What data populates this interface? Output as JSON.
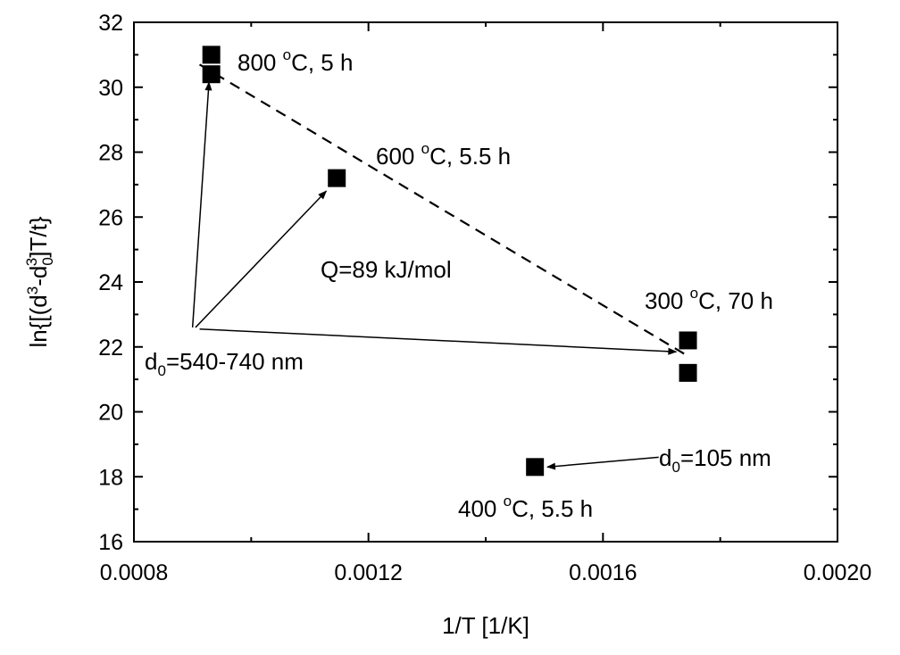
{
  "chart_data": {
    "type": "scatter",
    "xlabel": "1/T [1/K]",
    "ylabel": {
      "prefix": "ln{[(d",
      "sup1": "3",
      "mid1": "-d",
      "sub1": "0",
      "sup2": "3",
      "suffix": "]T/t}"
    },
    "xlim": [
      0.0008,
      0.002
    ],
    "ylim": [
      16,
      32
    ],
    "xticks": [
      {
        "value": 0.0008,
        "label": "0.0008"
      },
      {
        "value": 0.0012,
        "label": "0.0012"
      },
      {
        "value": 0.0016,
        "label": "0.0016"
      },
      {
        "value": 0.002,
        "label": "0.0020"
      }
    ],
    "yticks": [
      {
        "value": 16,
        "label": "16"
      },
      {
        "value": 18,
        "label": "18"
      },
      {
        "value": 20,
        "label": "20"
      },
      {
        "value": 22,
        "label": "22"
      },
      {
        "value": 24,
        "label": "24"
      },
      {
        "value": 26,
        "label": "26"
      },
      {
        "value": 28,
        "label": "28"
      },
      {
        "value": 30,
        "label": "30"
      },
      {
        "value": 32,
        "label": "32"
      }
    ],
    "points": [
      {
        "x": 0.000932,
        "y": 31.0
      },
      {
        "x": 0.000932,
        "y": 30.4
      },
      {
        "x": 0.001146,
        "y": 27.2
      },
      {
        "x": 0.001745,
        "y": 22.2
      },
      {
        "x": 0.001745,
        "y": 21.2
      },
      {
        "x": 0.001484,
        "y": 18.3
      }
    ],
    "fit_line": {
      "x": [
        0.000912,
        0.001742
      ],
      "y": [
        30.7,
        21.75
      ]
    },
    "annotations": {
      "label_800": {
        "main": "800 ",
        "sup": "o",
        "rest": "C, 5 h"
      },
      "label_600": {
        "main": "600 ",
        "sup": "o",
        "rest": "C, 5.5 h"
      },
      "label_300": {
        "main": "300 ",
        "sup": "o",
        "rest": "C, 70 h"
      },
      "label_400": {
        "main": "400 ",
        "sup": "o",
        "rest": "C, 5.5 h"
      },
      "activation": "Q=89 kJ/mol",
      "d0_large": {
        "main": "d",
        "sub": "0",
        "rest": "=540-740 nm"
      },
      "d0_small": {
        "main": "d",
        "sub": "0",
        "rest": "=105 nm"
      }
    },
    "arrows": [
      {
        "from": [
          0.0009,
          22.6
        ],
        "to": [
          0.000928,
          30.15
        ]
      },
      {
        "from": [
          0.000905,
          22.6
        ],
        "to": [
          0.001128,
          26.8
        ]
      },
      {
        "from": [
          0.000912,
          22.55
        ],
        "to": [
          0.001725,
          21.85
        ]
      },
      {
        "from": [
          0.001695,
          18.6
        ],
        "to": [
          0.001505,
          18.3
        ]
      }
    ],
    "grid": false,
    "legend": "none"
  }
}
